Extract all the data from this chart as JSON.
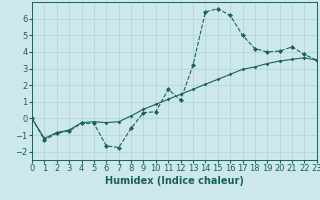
{
  "xlabel": "Humidex (Indice chaleur)",
  "ylabel": "",
  "background_color": "#cce8ea",
  "grid_color": "#b8d8da",
  "line_color": "#1a6060",
  "xlim": [
    0,
    23
  ],
  "ylim": [
    -2.5,
    7.0
  ],
  "xticks": [
    0,
    1,
    2,
    3,
    4,
    5,
    6,
    7,
    8,
    9,
    10,
    11,
    12,
    13,
    14,
    15,
    16,
    17,
    18,
    19,
    20,
    21,
    22,
    23
  ],
  "yticks": [
    -2,
    -1,
    0,
    1,
    2,
    3,
    4,
    5,
    6
  ],
  "curve1_x": [
    0,
    1,
    2,
    3,
    4,
    5,
    6,
    7,
    8,
    9,
    10,
    11,
    12,
    13,
    14,
    15,
    16,
    17,
    18,
    19,
    20,
    21,
    22,
    23
  ],
  "curve1_y": [
    0.0,
    -1.3,
    -0.9,
    -0.75,
    -0.3,
    -0.3,
    -1.65,
    -1.75,
    -0.6,
    0.35,
    0.4,
    1.75,
    1.1,
    3.2,
    6.4,
    6.6,
    6.2,
    5.0,
    4.2,
    4.0,
    4.05,
    4.3,
    3.85,
    3.5
  ],
  "curve2_x": [
    0,
    1,
    2,
    3,
    4,
    5,
    6,
    7,
    8,
    9,
    10,
    11,
    12,
    13,
    14,
    15,
    16,
    17,
    18,
    19,
    20,
    21,
    22,
    23
  ],
  "curve2_y": [
    0.0,
    -1.2,
    -0.85,
    -0.7,
    -0.25,
    -0.2,
    -0.25,
    -0.2,
    0.15,
    0.55,
    0.85,
    1.15,
    1.45,
    1.75,
    2.05,
    2.35,
    2.65,
    2.95,
    3.1,
    3.3,
    3.45,
    3.55,
    3.65,
    3.5
  ],
  "label_fontsize": 7,
  "tick_fontsize": 6
}
